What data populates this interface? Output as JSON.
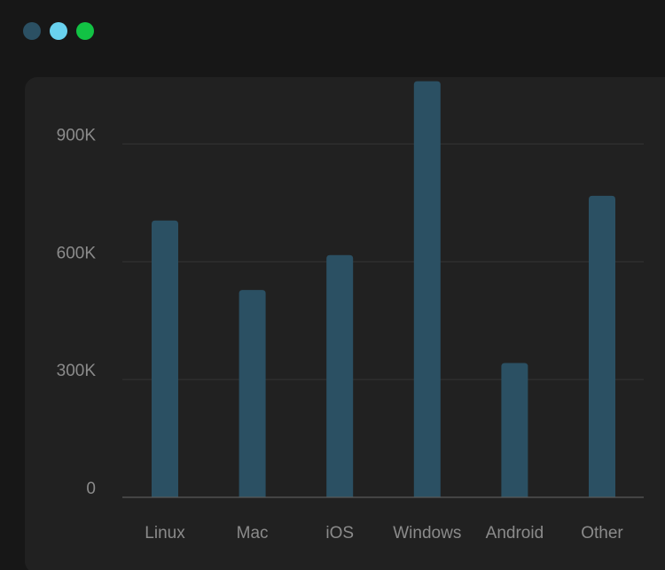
{
  "window": {
    "controls": [
      {
        "name": "close-button",
        "color": "#2b5063"
      },
      {
        "name": "minimize-button",
        "color": "#69d2ef"
      },
      {
        "name": "maximize-button",
        "color": "#12c244"
      }
    ]
  },
  "colors": {
    "bar": "#2b5063",
    "grid": "#343434",
    "baseline": "#5a5a5a",
    "label": "#8b8b8b",
    "panel": "#212121",
    "background": "#171717"
  },
  "chart_data": {
    "type": "bar",
    "title": "",
    "xlabel": "",
    "ylabel": "",
    "categories": [
      "Linux",
      "Mac",
      "iOS",
      "Windows",
      "Android",
      "Other"
    ],
    "values": [
      705000,
      528000,
      617000,
      1060000,
      342000,
      768000
    ],
    "ylim": [
      0,
      1050000
    ],
    "yticks": [
      0,
      300000,
      600000,
      900000
    ],
    "ytick_labels": [
      "0",
      "300K",
      "600K",
      "900K"
    ],
    "grid": true,
    "legend": "none"
  }
}
